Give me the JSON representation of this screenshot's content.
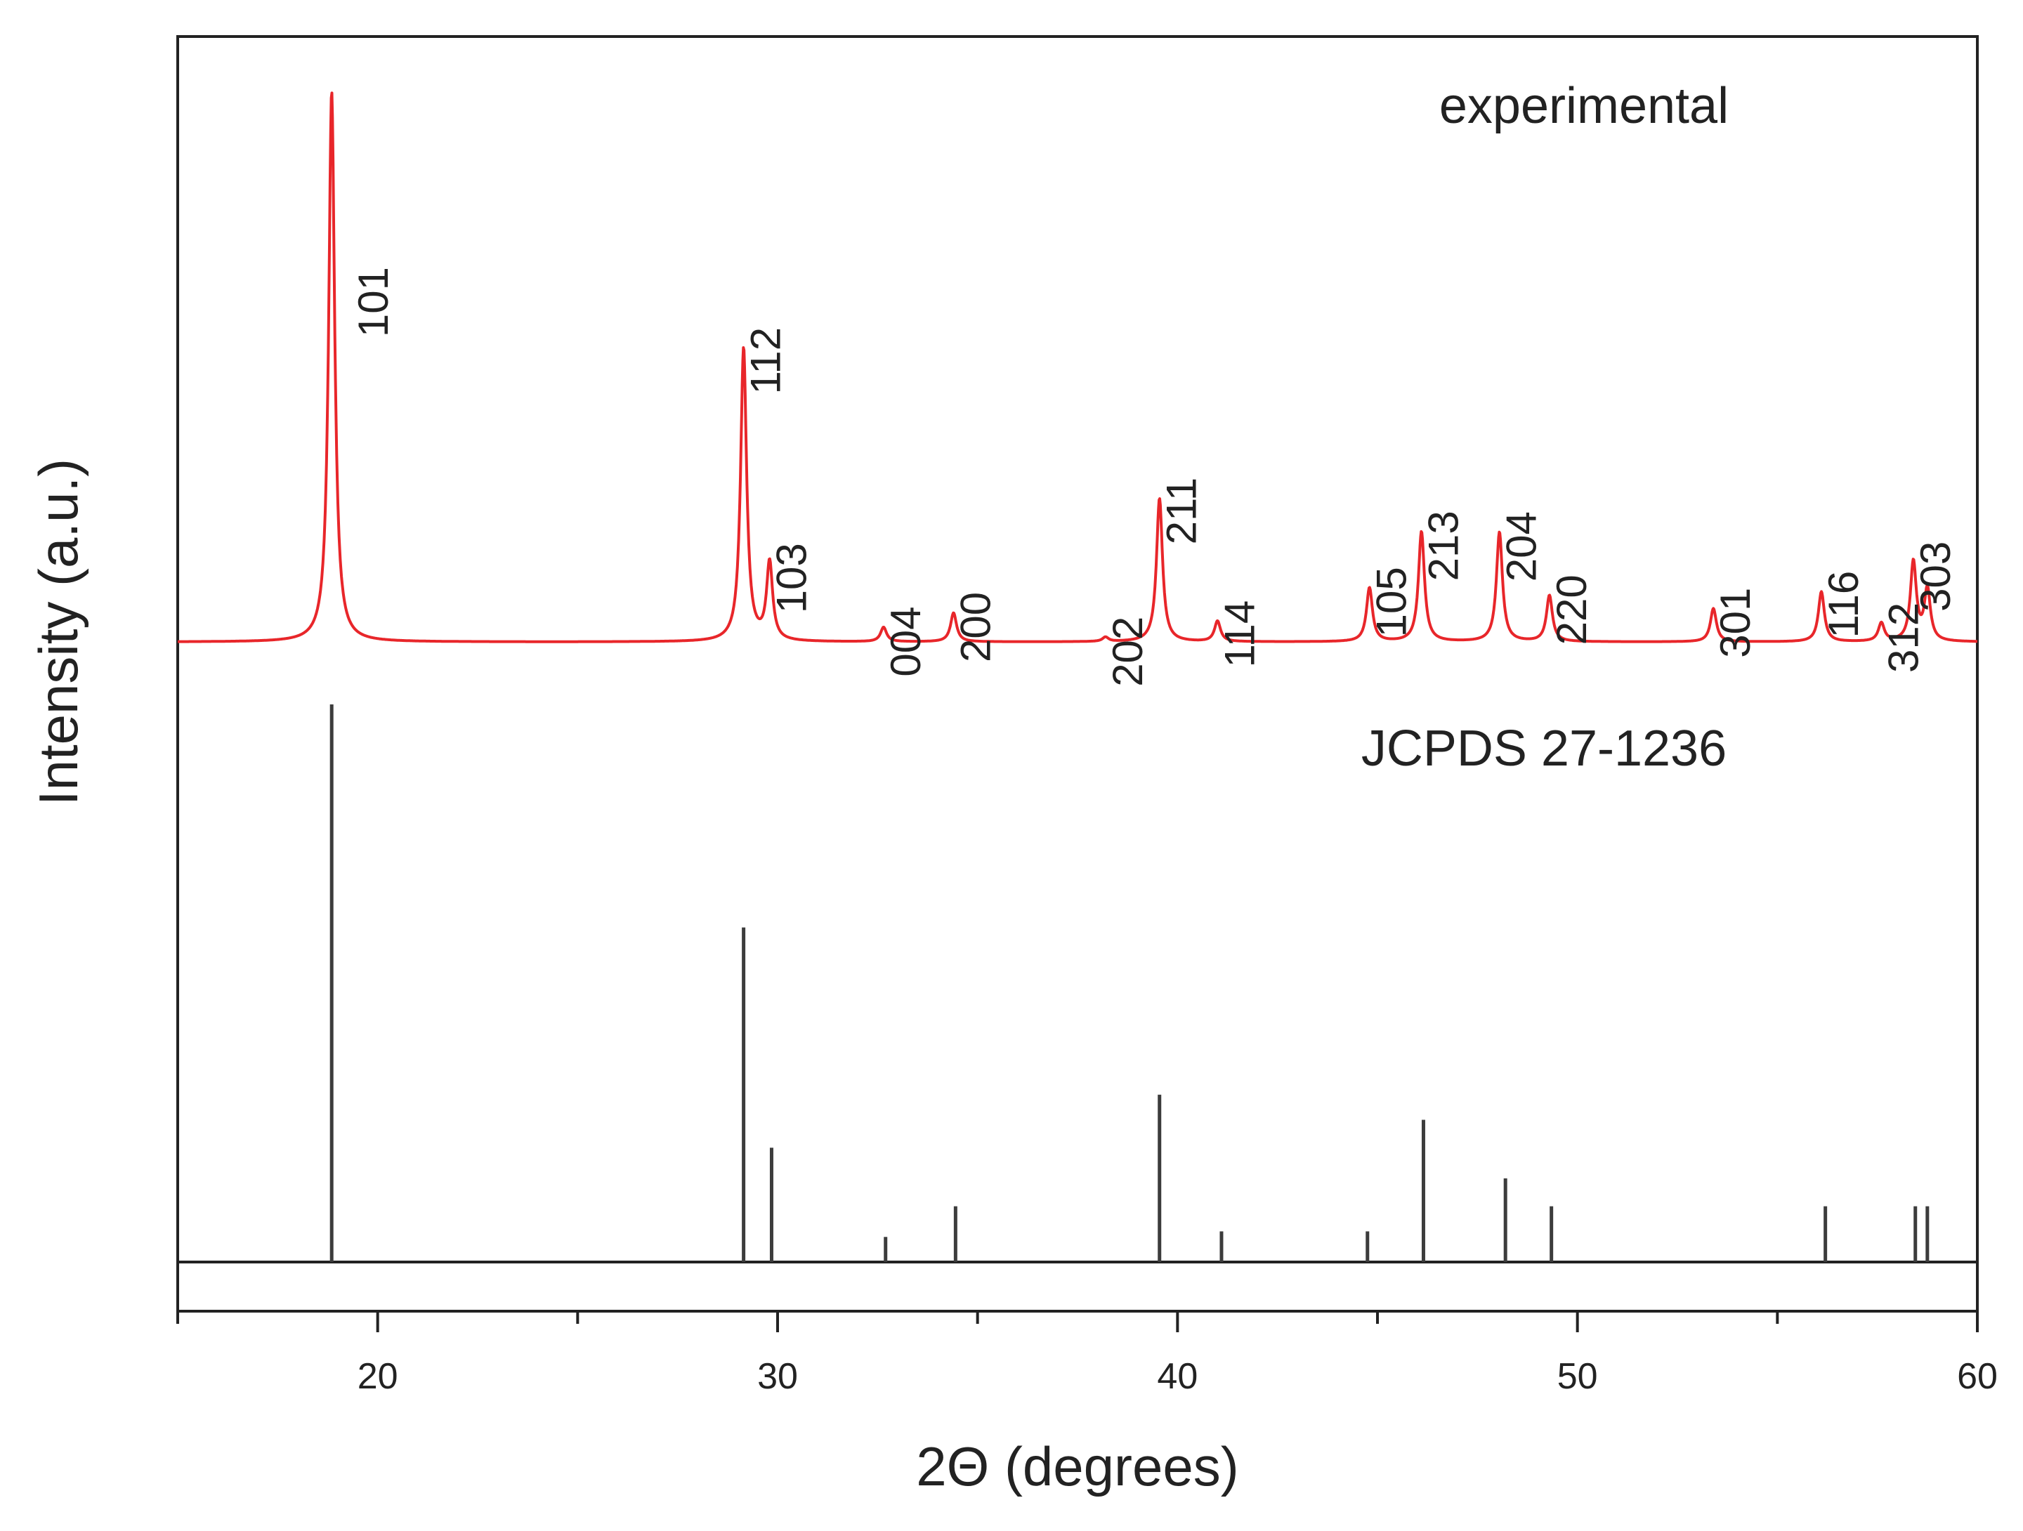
{
  "chart_data": {
    "type": "line",
    "xlabel": "2Θ (degrees)",
    "ylabel": "Intensity (a.u.)",
    "xlim": [
      15,
      60
    ],
    "x_ticks": [
      20,
      30,
      40,
      50,
      60
    ],
    "grid": false,
    "colors": {
      "experimental": "#e8262a",
      "reference": "#3c3c3c",
      "axis": "#222222"
    },
    "series": [
      {
        "name": "experimental",
        "kind": "xrd_pattern",
        "baseline": 1.0,
        "peaks": [
          {
            "x": 18.85,
            "y": 100,
            "label": "101"
          },
          {
            "x": 29.15,
            "y": 53.8,
            "label": "112"
          },
          {
            "x": 29.8,
            "y": 15.0,
            "label": "103"
          },
          {
            "x": 32.65,
            "y": 3.6,
            "label": "004"
          },
          {
            "x": 34.4,
            "y": 6.2,
            "label": "200"
          },
          {
            "x": 38.2,
            "y": 1.8,
            "label": "202"
          },
          {
            "x": 39.55,
            "y": 26.8,
            "label": "211"
          },
          {
            "x": 41.0,
            "y": 4.7,
            "label": "114"
          },
          {
            "x": 44.8,
            "y": 10.7,
            "label": "105"
          },
          {
            "x": 46.1,
            "y": 20.8,
            "label": "213"
          },
          {
            "x": 48.05,
            "y": 20.7,
            "label": "204"
          },
          {
            "x": 49.3,
            "y": 9.3,
            "label": "220"
          },
          {
            "x": 53.4,
            "y": 7.0,
            "label": "301"
          },
          {
            "x": 56.1,
            "y": 10.0,
            "label": "116"
          },
          {
            "x": 57.6,
            "y": 4.3,
            "label": "312"
          },
          {
            "x": 58.4,
            "y": 15.3,
            "label": "303"
          },
          {
            "x": 58.75,
            "y": 10.3,
            "label": ""
          }
        ]
      },
      {
        "name": "JCPDS 27-1236",
        "kind": "reference_sticks",
        "sticks": [
          {
            "x": 18.85,
            "y": 100
          },
          {
            "x": 29.15,
            "y": 60
          },
          {
            "x": 29.85,
            "y": 20.5
          },
          {
            "x": 32.7,
            "y": 4.5
          },
          {
            "x": 34.45,
            "y": 10
          },
          {
            "x": 39.55,
            "y": 30
          },
          {
            "x": 41.1,
            "y": 5.5
          },
          {
            "x": 44.75,
            "y": 5.5
          },
          {
            "x": 46.15,
            "y": 25.5
          },
          {
            "x": 48.2,
            "y": 15
          },
          {
            "x": 49.35,
            "y": 10
          },
          {
            "x": 56.2,
            "y": 10
          },
          {
            "x": 58.45,
            "y": 10
          },
          {
            "x": 58.75,
            "y": 10
          }
        ]
      }
    ]
  }
}
